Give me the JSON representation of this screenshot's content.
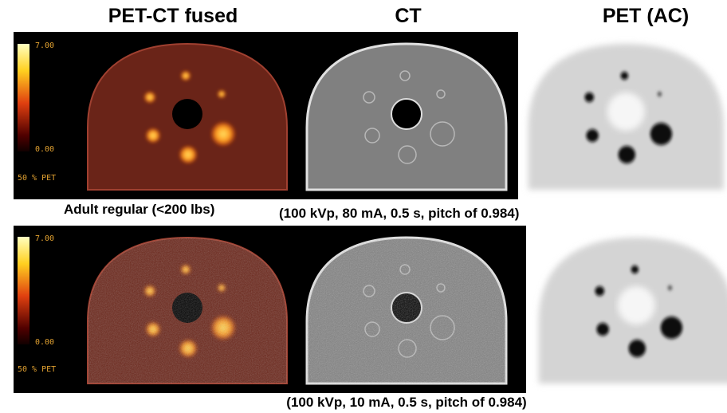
{
  "headers": [
    "PET-CT fused",
    "CT",
    "PET (AC)"
  ],
  "rows": [
    {
      "label": "Adult regular (<200 lbs)",
      "caption": "(100 kVp, 80 mA, 0.5 s, pitch of 0.984)",
      "colorbar_max": "7.00",
      "colorbar_min": "0.00",
      "overlay": "50 % PET"
    },
    {
      "caption": "(100 kVp, 10 mA, 0.5 s, pitch of 0.984)",
      "colorbar_max": "7.00",
      "colorbar_min": "0.00",
      "overlay": "50 % PET"
    }
  ]
}
